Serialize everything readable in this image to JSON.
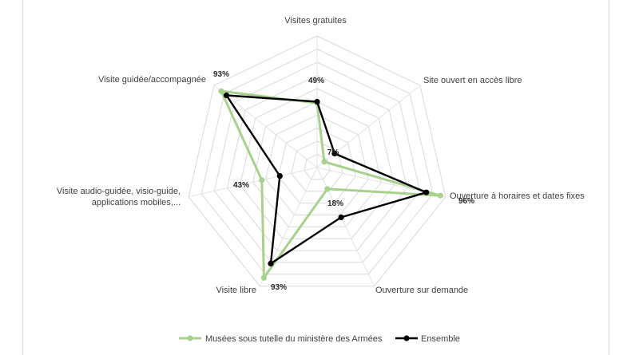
{
  "chart_data": {
    "type": "radar",
    "title": "",
    "categories": [
      "Visites gratuites",
      "Site ouvert en accès libre",
      "Ouverture à horaires et dates fixes",
      "Ouverture sur demande",
      "Visite libre",
      "Visite audio-guidée, visio-guide, applications mobiles,...",
      "Visite guidée/accompagnée"
    ],
    "category_lines": [
      [
        "Visites gratuites"
      ],
      [
        "Site ouvert en accès libre"
      ],
      [
        "Ouverture à horaires et dates fixes"
      ],
      [
        "Ouverture sur demande"
      ],
      [
        "Visite libre"
      ],
      [
        "Visite audio-guidée, visio-guide,",
        "applications mobiles,..."
      ],
      [
        "Visite guidée/accompagnée"
      ]
    ],
    "rlim": [
      0,
      100
    ],
    "grid_levels": 10,
    "grid": true,
    "legend_position": "bottom",
    "series": [
      {
        "name": "Musées sous tutelle du ministère des Armées",
        "color": "#a9d18e",
        "values": [
          49,
          7,
          96,
          18,
          93,
          43,
          93
        ],
        "value_labels": [
          "49%",
          "7%",
          "96%",
          "18%",
          "93%",
          "43%",
          "93%"
        ]
      },
      {
        "name": "Ensemble",
        "color": "#000000",
        "values": [
          50,
          17,
          85,
          42,
          81,
          29,
          88
        ],
        "value_labels": [
          "",
          "",
          "",
          "",
          "",
          "",
          ""
        ]
      }
    ]
  }
}
